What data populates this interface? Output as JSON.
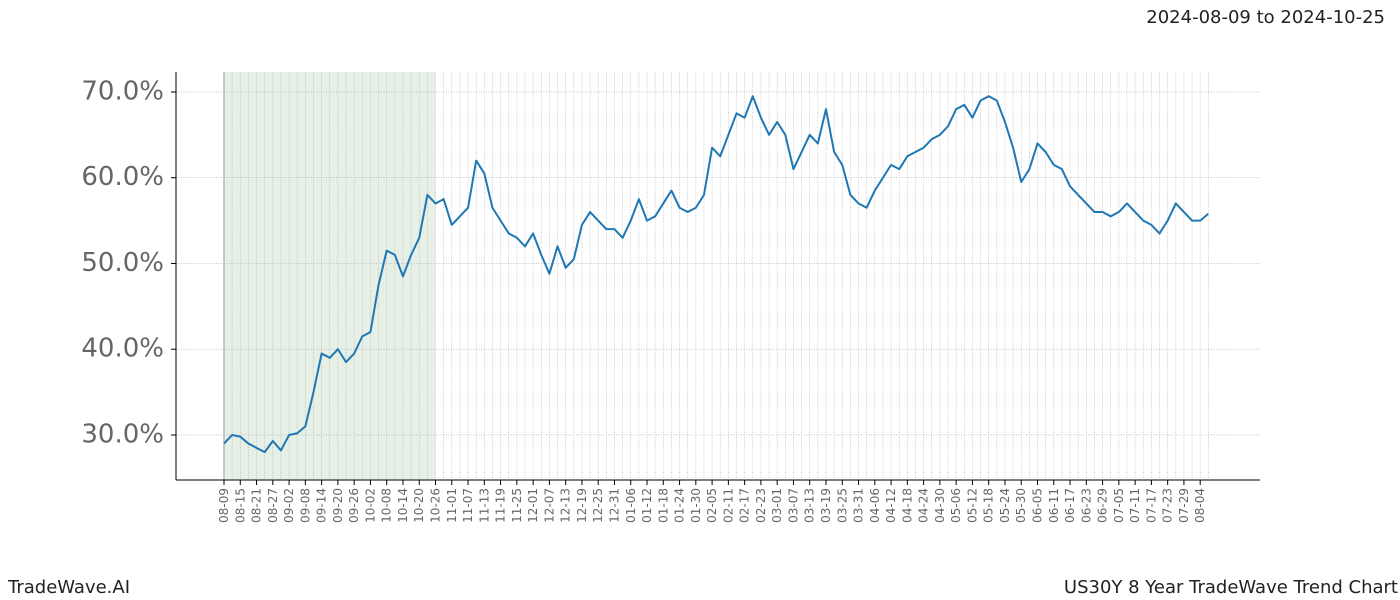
{
  "chart_data": {
    "type": "line",
    "title": "US30Y 8 Year TradeWave Trend Chart",
    "subtitle": "2024-08-09 to 2024-10-25",
    "brand": "TradeWave.AI",
    "categories": [
      "08-09",
      null,
      "08-15",
      null,
      "08-21",
      null,
      "08-27",
      null,
      "09-02",
      null,
      "09-08",
      null,
      "09-14",
      null,
      "09-20",
      null,
      "09-26",
      null,
      "10-02",
      null,
      "10-08",
      null,
      "10-14",
      null,
      "10-20",
      null,
      "10-26",
      null,
      "11-01",
      null,
      "11-07",
      null,
      "11-13",
      null,
      "11-19",
      null,
      "11-25",
      null,
      "12-01",
      null,
      "12-07",
      null,
      "12-13",
      null,
      "12-19",
      null,
      "12-25",
      null,
      "12-31",
      null,
      "01-06",
      null,
      "01-12",
      null,
      "01-18",
      null,
      "01-24",
      null,
      "01-30",
      null,
      "02-05",
      null,
      "02-11",
      null,
      "02-17",
      null,
      "02-23",
      null,
      "03-01",
      null,
      "03-07",
      null,
      "03-13",
      null,
      "03-19",
      null,
      "03-25",
      null,
      "03-31",
      null,
      "04-06",
      null,
      "04-12",
      null,
      "04-18",
      null,
      "04-24",
      null,
      "04-30",
      null,
      "05-06",
      null,
      "05-12",
      null,
      "05-18",
      null,
      "05-24",
      null,
      "05-30",
      null,
      "06-05",
      null,
      "06-11",
      null,
      "06-17",
      null,
      "06-23",
      null,
      "06-29",
      null,
      "07-05",
      null,
      "07-11",
      null,
      "07-17",
      null,
      "07-23",
      null,
      "07-29",
      null,
      "08-04",
      null
    ],
    "series": [
      {
        "color": "#1f77b4",
        "values": [
          29,
          30,
          29.8,
          29,
          28.5,
          28,
          29.3,
          28.2,
          30,
          30.2,
          31,
          35,
          39.5,
          39,
          40,
          38.5,
          39.5,
          41.5,
          42,
          47.5,
          51.5,
          51,
          48.5,
          51,
          53,
          58,
          57,
          57.5,
          54.5,
          55.5,
          56.5,
          62,
          60.5,
          56.5,
          55,
          53.5,
          53,
          52,
          53.5,
          51,
          48.8,
          52,
          49.5,
          50.5,
          54.5,
          56,
          55,
          54,
          54,
          53,
          55,
          57.5,
          55,
          55.5,
          57,
          58.5,
          56.5,
          56,
          56.5,
          58,
          63.5,
          62.5,
          65,
          67.5,
          67,
          69.5,
          67,
          65,
          66.5,
          65,
          61,
          63,
          65,
          64,
          68,
          63,
          61.5,
          58,
          57,
          56.5,
          58.5,
          60,
          61.5,
          61,
          62.5,
          63,
          63.5,
          64.5,
          65,
          66,
          68,
          68.5,
          67,
          69,
          69.5,
          69,
          66.5,
          63.5,
          59.5,
          61,
          64,
          63,
          61.5,
          61,
          59,
          58,
          57,
          56,
          56,
          55.5,
          56,
          57,
          56,
          55,
          54.5,
          53.5,
          55,
          57,
          56,
          55,
          55,
          55.8
        ]
      }
    ],
    "highlight": {
      "start": "08-09",
      "end": "10-26",
      "color": "#e6f0e6"
    },
    "ylim": [
      24.75,
      72.33
    ],
    "yticks": [
      {
        "value": 30,
        "label": "30.0%"
      },
      {
        "value": 40,
        "label": "40.0%"
      },
      {
        "value": 50,
        "label": "50.0%"
      },
      {
        "value": 60,
        "label": "60.0%"
      },
      {
        "value": 70,
        "label": "70.0%"
      }
    ],
    "grid": true
  }
}
